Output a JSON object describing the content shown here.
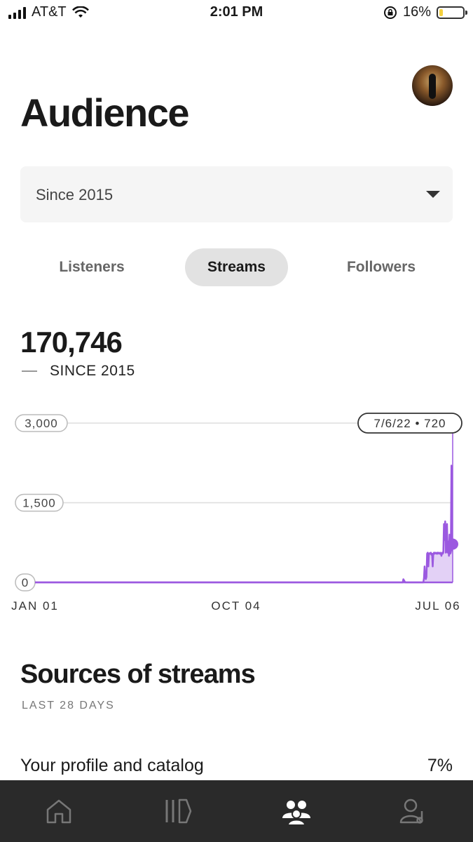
{
  "status_bar": {
    "carrier": "AT&T",
    "time": "2:01 PM",
    "battery": "16%",
    "battery_level": 0.16
  },
  "header": {
    "title": "Audience"
  },
  "filter": {
    "selected": "Since 2015"
  },
  "tabs": [
    {
      "label": "Listeners",
      "active": false
    },
    {
      "label": "Streams",
      "active": true
    },
    {
      "label": "Followers",
      "active": false
    }
  ],
  "stat": {
    "value": "170,746",
    "caption": "SINCE 2015"
  },
  "chart_data": {
    "type": "area",
    "y_ticks": [
      "3,000",
      "1,500",
      "0"
    ],
    "ylim": [
      0,
      3000
    ],
    "x_ticks": [
      "JAN 01",
      "OCT 04",
      "JUL 06"
    ],
    "tooltip": "7/6/22 • 720",
    "color": "#9b59e0",
    "series": [
      {
        "values": [
          0,
          0,
          0,
          0,
          0,
          0,
          0,
          0,
          0,
          0,
          0,
          0,
          0,
          0,
          0,
          0,
          0,
          0,
          0,
          0,
          0,
          0,
          0,
          0,
          0,
          0,
          0,
          0,
          0,
          0,
          0,
          0,
          0,
          0,
          0,
          0,
          0,
          0,
          0,
          0,
          0,
          0,
          0,
          0,
          0,
          0,
          0,
          0,
          0,
          0,
          0,
          0,
          0,
          0,
          0,
          0,
          0,
          0,
          0,
          0,
          0,
          0,
          0,
          0,
          0,
          0,
          0,
          0,
          0,
          0,
          0,
          0,
          0,
          0,
          0,
          0,
          0,
          0,
          0,
          0,
          0,
          0,
          0,
          0,
          0,
          0,
          0,
          0,
          0,
          0,
          0,
          0,
          0,
          0,
          0,
          0,
          0,
          0,
          0,
          0,
          0,
          0,
          0,
          0,
          0,
          0,
          0,
          0,
          0,
          0,
          0,
          0,
          0,
          0,
          0,
          0,
          0,
          0,
          0,
          0,
          0,
          0,
          0,
          0,
          0,
          0,
          0,
          0,
          0,
          0,
          0,
          0,
          0,
          0,
          0,
          0,
          0,
          0,
          0,
          0,
          0,
          0,
          0,
          0,
          0,
          0,
          0,
          0,
          0,
          0,
          0,
          0,
          0,
          0,
          0,
          0,
          0,
          0,
          0,
          0,
          0,
          0,
          0,
          0,
          0,
          0,
          0,
          0,
          0,
          0,
          0,
          0,
          0,
          0,
          0,
          0,
          0,
          0,
          0,
          0,
          0,
          0,
          0,
          0,
          0,
          0,
          0,
          0,
          0,
          0,
          0,
          0,
          0,
          0,
          0,
          0,
          0,
          0,
          0,
          0,
          0,
          0,
          0,
          0,
          0,
          0,
          0,
          0,
          0,
          0,
          0,
          0,
          0,
          0,
          0,
          0,
          0,
          0,
          0,
          0,
          0,
          0,
          0,
          0,
          0,
          0,
          0,
          0,
          0,
          0,
          0,
          0,
          0,
          0,
          0,
          0,
          0,
          0,
          0,
          0,
          0,
          0,
          0,
          0,
          0,
          0,
          0,
          0,
          0,
          0,
          0,
          0,
          0,
          0,
          0,
          0,
          0,
          0,
          0,
          0,
          0,
          0,
          0,
          0,
          0,
          0,
          0,
          0,
          0,
          0,
          0,
          0,
          0,
          0,
          0,
          0,
          0,
          0,
          0,
          0,
          0,
          0,
          0,
          0,
          0,
          0,
          0,
          0,
          0,
          0,
          0,
          0,
          0,
          0,
          0,
          0,
          0,
          0,
          0,
          0,
          0,
          0,
          0,
          0,
          0,
          0,
          0,
          0,
          0,
          0,
          0,
          0,
          0,
          0,
          0,
          0,
          0,
          0,
          0,
          0,
          0,
          0,
          0,
          0,
          0,
          0,
          0,
          0,
          0,
          0,
          0,
          0,
          0,
          0,
          0,
          0,
          0,
          0,
          0,
          0,
          0,
          0,
          0,
          0,
          0,
          0,
          0,
          0,
          0,
          0,
          0,
          0,
          0,
          0,
          0,
          0,
          0,
          0,
          0,
          0,
          0,
          0,
          0,
          0,
          0,
          0,
          0,
          0,
          0,
          0,
          0,
          0,
          0,
          0,
          0,
          0,
          0,
          0,
          0,
          0,
          0,
          0,
          0,
          0,
          0,
          0,
          0,
          0,
          0,
          0,
          0,
          0,
          0,
          0,
          0,
          0,
          0,
          0,
          0,
          0,
          0,
          0,
          0,
          0,
          0,
          0,
          0,
          0,
          0,
          0,
          0,
          0,
          0,
          0,
          0,
          0,
          0,
          0,
          0,
          0,
          0,
          0,
          0,
          0,
          0,
          0,
          0,
          0,
          0,
          0,
          0,
          0,
          0,
          0,
          0,
          0,
          0,
          0,
          0,
          0,
          0,
          0,
          0,
          0,
          0,
          0,
          0,
          0,
          0,
          0,
          0,
          0,
          0,
          0,
          0,
          0,
          0,
          0,
          0,
          0,
          0,
          0,
          0,
          0,
          0,
          0,
          0,
          0,
          0,
          0,
          0,
          0,
          0,
          0,
          0,
          0,
          0,
          0,
          0,
          0,
          0,
          0,
          0,
          0,
          0,
          0,
          0,
          0,
          0,
          0,
          0,
          0,
          0,
          0,
          0,
          0,
          0,
          0,
          0,
          0,
          0,
          0,
          0,
          0,
          0,
          0,
          0,
          0,
          0,
          0,
          0,
          0,
          0,
          0,
          0,
          0,
          0,
          0,
          0,
          0,
          0,
          0,
          0,
          0,
          0,
          0,
          0,
          0,
          0,
          0,
          0,
          0,
          0,
          0,
          0,
          0,
          0,
          0,
          0,
          0,
          0,
          0,
          0,
          0,
          0,
          0,
          0,
          0,
          0,
          0,
          0,
          0,
          0,
          0,
          0,
          0,
          0,
          0,
          0,
          0,
          0,
          0,
          0,
          0,
          0,
          0,
          0,
          0,
          0,
          0,
          0,
          0,
          0,
          0,
          0,
          0,
          0,
          0,
          0,
          0,
          0,
          0,
          0,
          0,
          0,
          0,
          0,
          0,
          0,
          0,
          60,
          40,
          20,
          0,
          0,
          0,
          0,
          0,
          0,
          0,
          0,
          0,
          0,
          0,
          0,
          0,
          0,
          0,
          0,
          0,
          0,
          0,
          0,
          0,
          0,
          0,
          0,
          0,
          0,
          0,
          0,
          0,
          0,
          80,
          300,
          100,
          60,
          100,
          540,
          560,
          300,
          540,
          550,
          540,
          560,
          520,
          540,
          300,
          540,
          560,
          540,
          560,
          550,
          540,
          560,
          540,
          560,
          550,
          540,
          560,
          540,
          500,
          560,
          540,
          560,
          1100,
          800,
          1150,
          560,
          600,
          1100,
          560,
          700,
          500,
          900,
          540,
          560,
          2200,
          600,
          720
        ]
      }
    ]
  },
  "sources": {
    "title": "Sources of streams",
    "subtitle": "LAST 28 DAYS",
    "rows": [
      {
        "label": "Your profile and catalog",
        "pct": "7%"
      }
    ]
  },
  "nav": [
    {
      "name": "home-icon",
      "active": false
    },
    {
      "name": "library-icon",
      "active": false
    },
    {
      "name": "audience-icon",
      "active": true
    },
    {
      "name": "profile-icon",
      "active": false
    }
  ]
}
